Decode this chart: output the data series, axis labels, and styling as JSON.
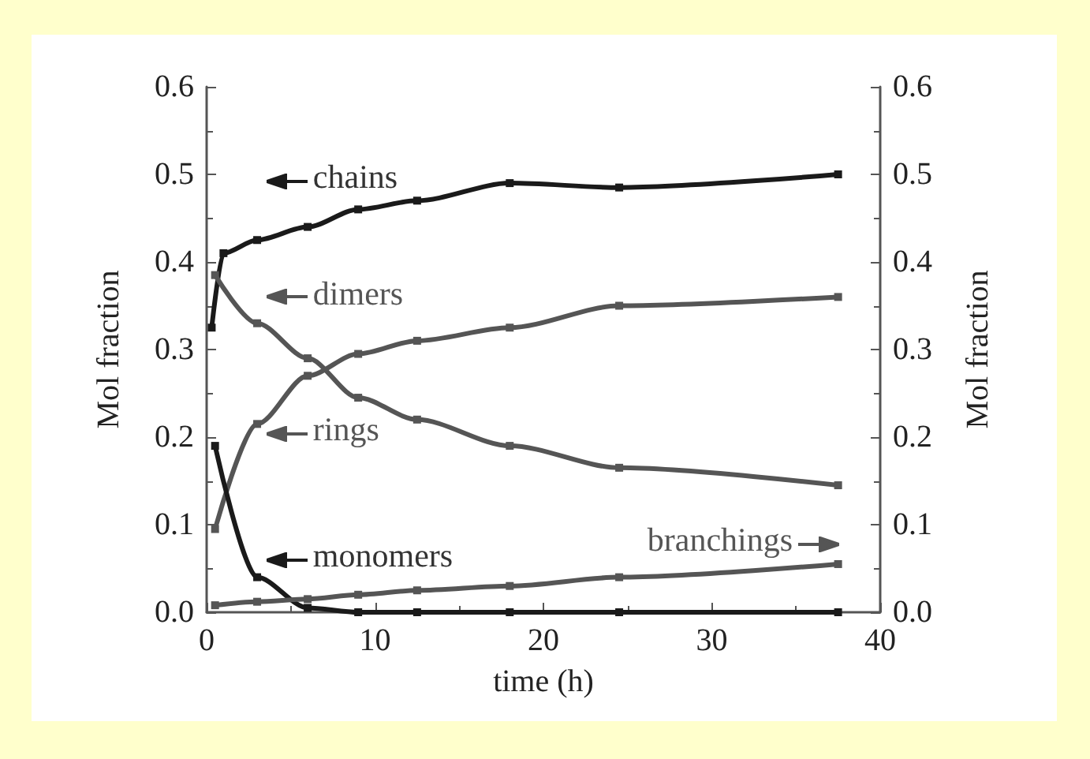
{
  "chart_data": {
    "type": "line",
    "xlabel": "time (h)",
    "ylabel": "Mol fraction",
    "y2label": "Mol fraction",
    "series": [
      {
        "name": "chains",
        "color": "#1a1a1a",
        "x": [
          0.3,
          1,
          3,
          6,
          9,
          12.5,
          18,
          24.5,
          37.5
        ],
        "values": [
          0.325,
          0.41,
          0.425,
          0.44,
          0.46,
          0.47,
          0.49,
          0.485,
          0.5
        ]
      },
      {
        "name": "dimers",
        "color": "#555555",
        "x": [
          0.5,
          3,
          6,
          9,
          12.5,
          18,
          24.5,
          37.5
        ],
        "values": [
          0.385,
          0.33,
          0.29,
          0.245,
          0.22,
          0.19,
          0.165,
          0.145
        ]
      },
      {
        "name": "rings",
        "color": "#555555",
        "x": [
          0.5,
          3,
          6,
          9,
          12.5,
          18,
          24.5,
          37.5
        ],
        "values": [
          0.095,
          0.215,
          0.27,
          0.295,
          0.31,
          0.325,
          0.35,
          0.36
        ]
      },
      {
        "name": "monomers",
        "color": "#1a1a1a",
        "x": [
          0.5,
          3,
          6,
          9,
          12.5,
          18,
          24.5,
          37.5
        ],
        "values": [
          0.19,
          0.04,
          0.005,
          0,
          0,
          0,
          0,
          0
        ]
      },
      {
        "name": "branchings",
        "color": "#555555",
        "x": [
          0.5,
          3,
          6,
          9,
          12.5,
          18,
          24.5,
          37.5
        ],
        "values": [
          0.008,
          0.012,
          0.015,
          0.02,
          0.025,
          0.03,
          0.04,
          0.055
        ]
      }
    ],
    "xlim": [
      0,
      40
    ],
    "xticks": [
      0,
      10,
      20,
      30,
      40
    ],
    "ylim": [
      0,
      0.6
    ],
    "yticks": [
      {
        "value": 0,
        "label": "0.0"
      },
      0.1,
      0.2,
      0.3,
      0.4,
      0.5,
      0.6
    ],
    "y2lim": [
      0,
      0.6
    ],
    "y2ticks": [
      {
        "value": 0,
        "label": "0.0"
      },
      0.1,
      0.2,
      0.3,
      0.4,
      0.5,
      0.6
    ],
    "marker": "square",
    "line_style": "solid",
    "grid": false,
    "legend": "left"
  }
}
